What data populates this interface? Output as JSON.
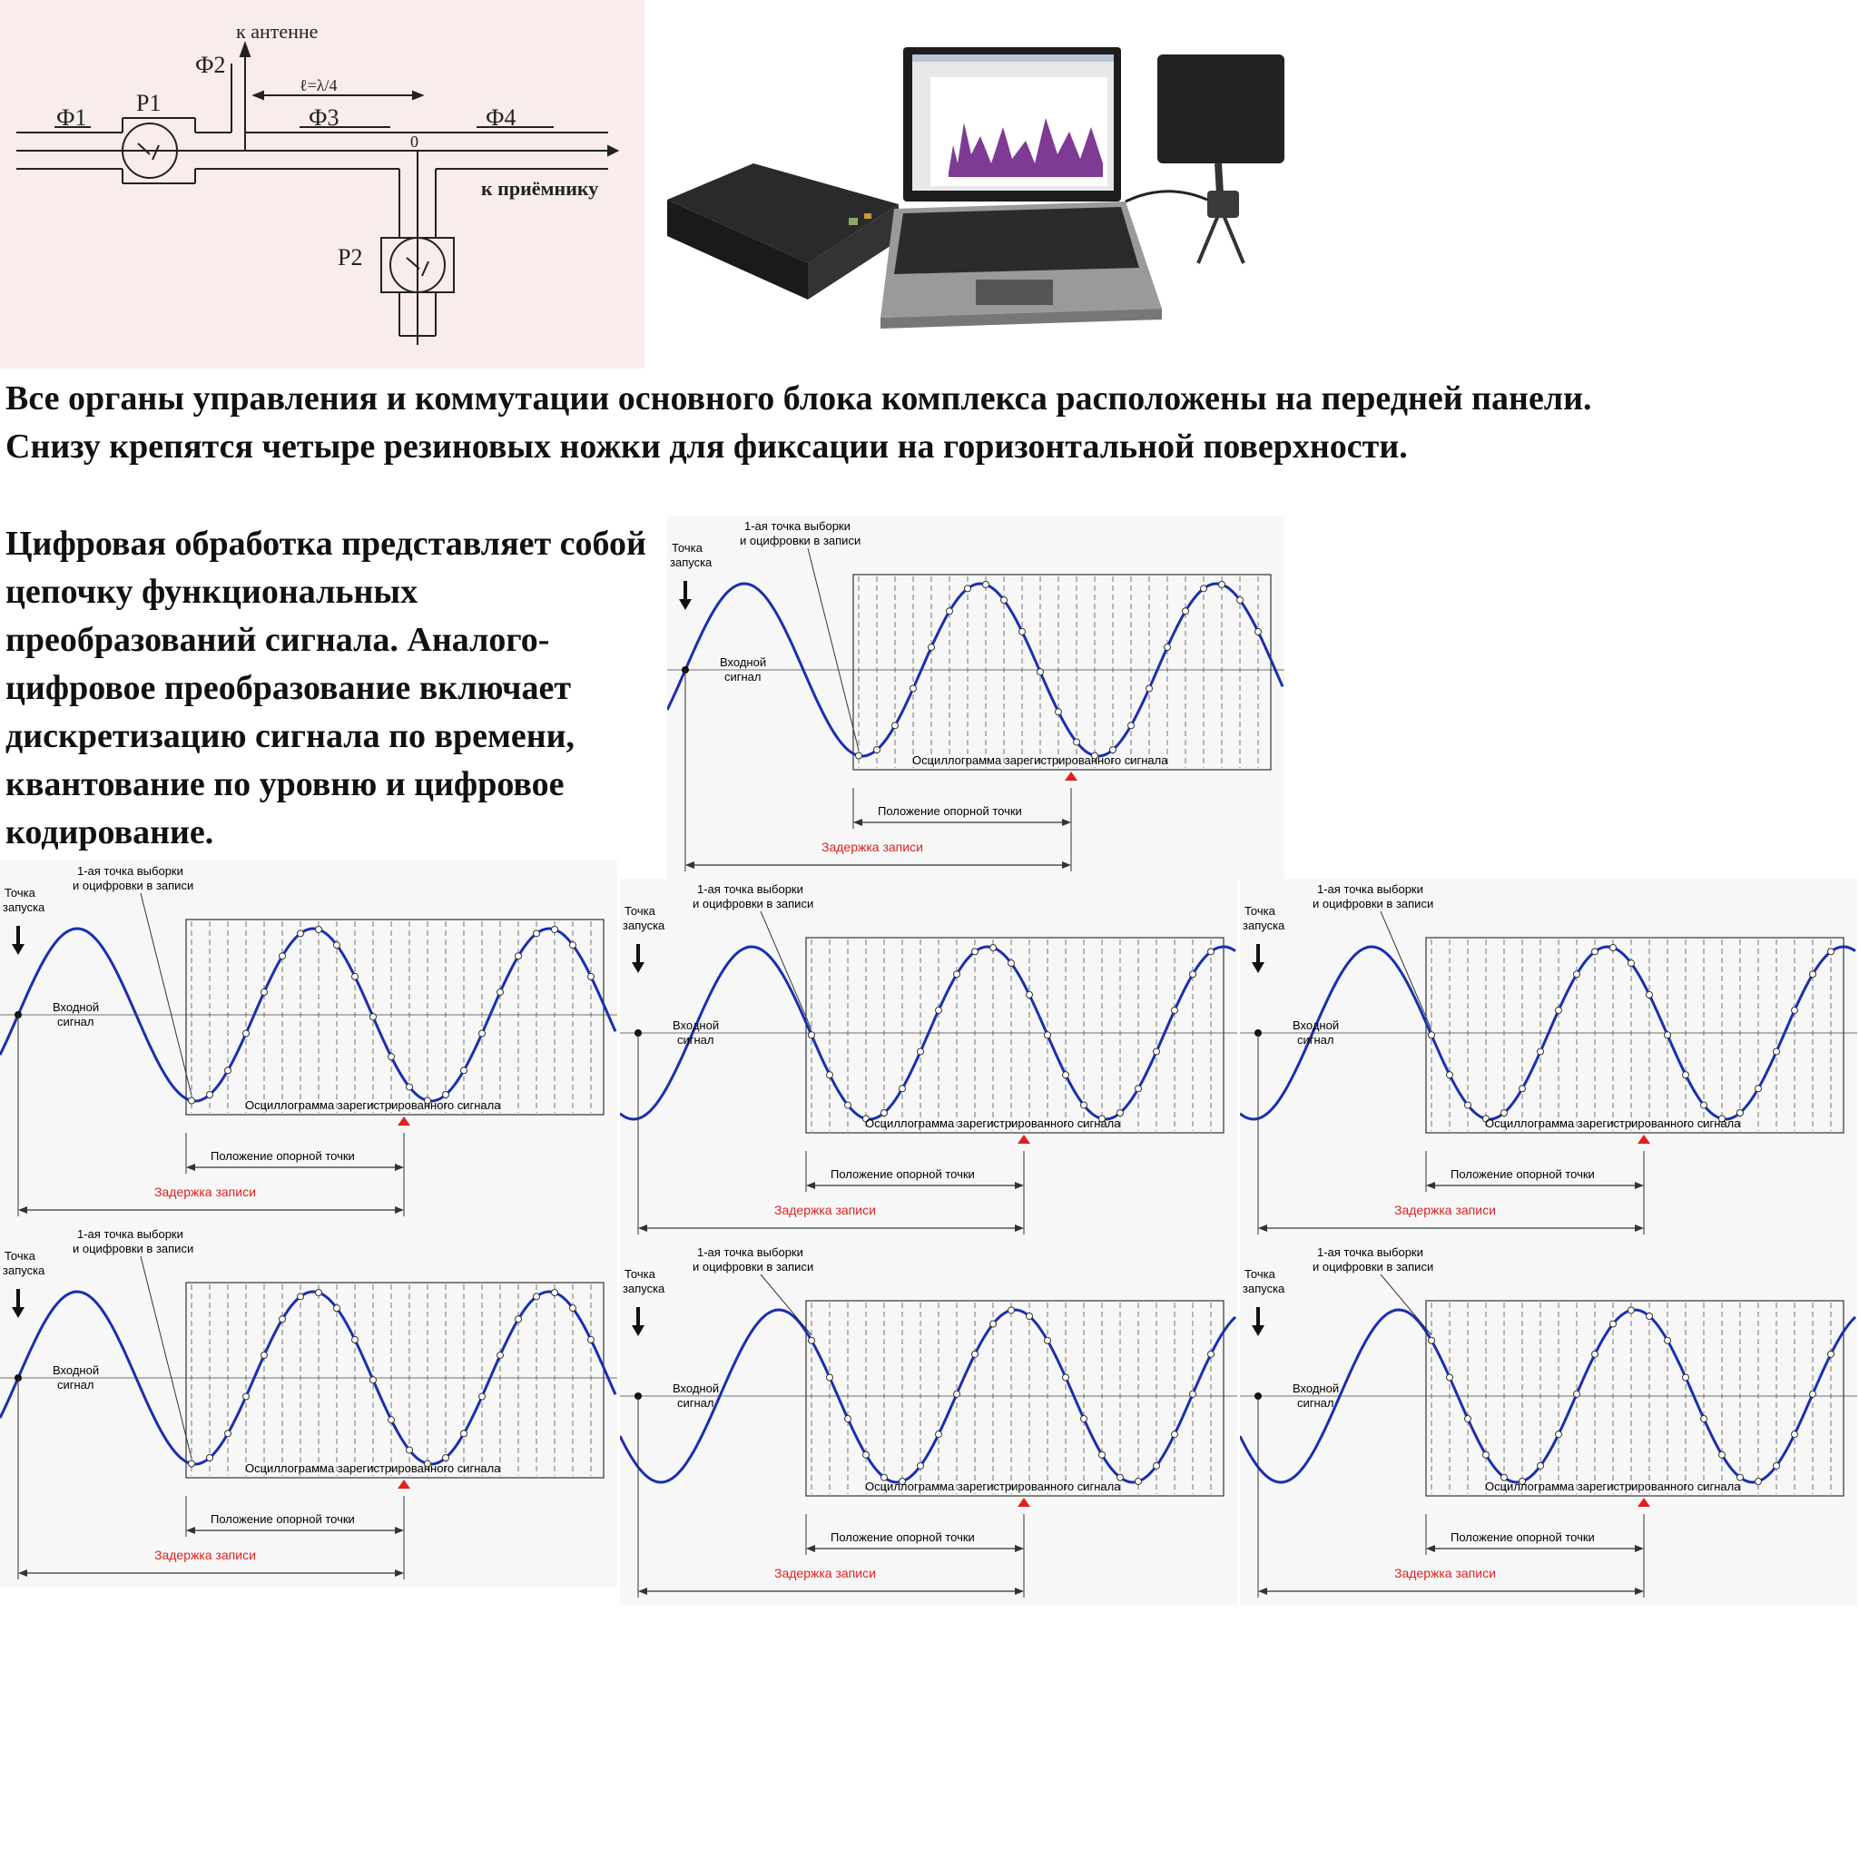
{
  "schematic": {
    "labels": {
      "antenna": "к антенне",
      "receiver": "к приёмнику",
      "phi1": "Ф1",
      "phi2": "Ф2",
      "phi3": "Ф3",
      "phi4": "Ф4",
      "p1": "Р1",
      "p2": "Р2",
      "length": "ℓ=λ/4",
      "node": "0"
    }
  },
  "text": {
    "paragraph1": "Все органы управления и коммутации основного блока комплекса расположены на передней панели. Снизу крепятся четыре резиновых ножки для фиксации на горизонтальной поверхности.",
    "paragraph2": "Цифровая обработка представляет собой цепочку функциональных преобразований сигнала. Аналого-цифровое преобразование включает дискретизацию сигнала по времени, квантование по уровню и цифровое кодирование."
  },
  "oscillogram": {
    "first_point": "1-ая точка выборки и оцифровки в записи",
    "first_point_line1": "1-ая точка выборки",
    "first_point_line2": "и оцифровки в записи",
    "trigger": "Точка запуска",
    "trigger_line1": "Точка",
    "trigger_line2": "запуска",
    "input_line1": "Входной",
    "input_line2": "сигнал",
    "record": "Осциллограмма зарегистрированного сигнала",
    "ref_point": "Положение опорной точки",
    "delay": "Задержка записи",
    "colors": {
      "signal": "#1a2fb0",
      "delay_text": "#e02020",
      "marker": "#e02020"
    }
  }
}
